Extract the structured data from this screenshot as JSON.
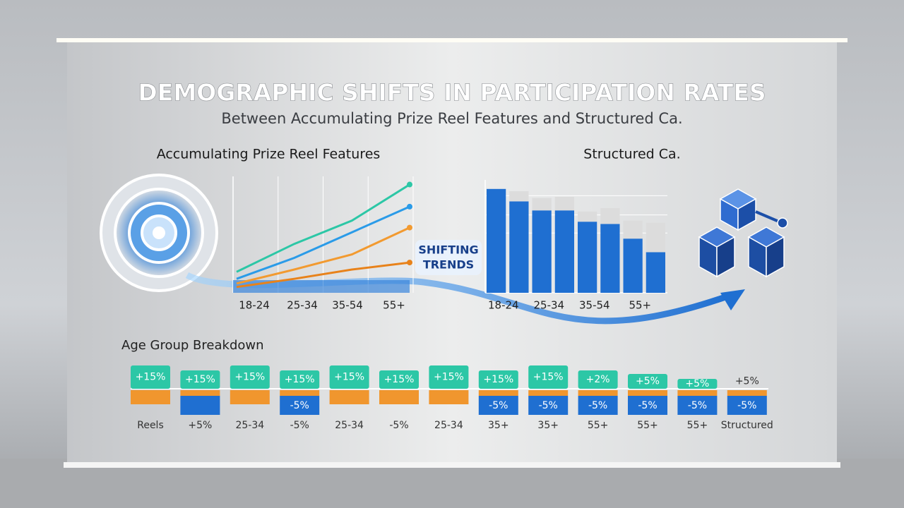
{
  "title": "DEMOGRAPHIC SHIFTS IN PARTICIPATION RATES",
  "subtitle": "Between Accumulating Prize Reel Features and Structured Ca.",
  "annotation": [
    "SHIFTING",
    "TRENDS"
  ],
  "chart_data": [
    {
      "type": "line",
      "title": "Accumulating Prize Reel Features",
      "categories": [
        "18-24",
        "25-34",
        "35-54",
        "55+"
      ],
      "ylim": [
        0,
        100
      ],
      "grid": true,
      "series": [
        {
          "color": "#2cc7a6",
          "values": [
            18,
            42,
            62,
            93
          ]
        },
        {
          "color": "#2a9be8",
          "values": [
            12,
            30,
            52,
            74
          ]
        },
        {
          "color": "#f29a30",
          "values": [
            8,
            20,
            33,
            56
          ]
        },
        {
          "color": "#e8821a",
          "values": [
            5,
            12,
            20,
            26
          ]
        }
      ]
    },
    {
      "type": "bar",
      "title": "Structured Ca.",
      "stacked": true,
      "categories": [
        "18-24",
        null,
        "25-34",
        null,
        "35-54",
        null,
        "55+",
        null
      ],
      "ylim": [
        0,
        100
      ],
      "grid": true,
      "series": [
        {
          "color": "#1f6fd1",
          "values": [
            92,
            81,
            73,
            73,
            63,
            61,
            48,
            36
          ]
        },
        {
          "color": "#dcdcdc",
          "values": [
            0,
            9,
            11,
            12,
            9,
            14,
            16,
            26
          ]
        }
      ]
    }
  ],
  "breakdown": {
    "title": "Age Group Breakdown",
    "tiles": [
      {
        "top": "+15%",
        "bottom_color": "#f0962e",
        "label": "Reels"
      },
      {
        "top": "+15%",
        "bottom_color": "#1f6fd1",
        "label": "+5%"
      },
      {
        "top": "+15%",
        "bottom_color": "#f0962e",
        "label": "25-34"
      },
      {
        "top": "+15%",
        "bottom": "-5%",
        "bottom_color": "#1f6fd1",
        "label": "-5%"
      },
      {
        "top": "+15%",
        "bottom_color": "#f0962e",
        "label": "25-34"
      },
      {
        "top": "+15%",
        "bottom_color": "#f0962e",
        "label": "-5%"
      },
      {
        "top": "+15%",
        "bottom_color": "#f0962e",
        "label": "25-34"
      },
      {
        "top": "+15%",
        "bottom": "-5%",
        "bottom_color": "#1f6fd1",
        "label": "35+"
      },
      {
        "top": "+15%",
        "bottom": "-5%",
        "bottom_color": "#1f6fd1",
        "label": "35+"
      },
      {
        "top": "+2%",
        "bottom": "-5%",
        "bottom_color": "#1f6fd1",
        "label": "55+"
      },
      {
        "top": "+5%",
        "bottom": "-5%",
        "bottom_color": "#1f6fd1",
        "label": "55+"
      },
      {
        "top": "+5%",
        "bottom": "-5%",
        "bottom_color": "#1f6fd1",
        "label": "55+"
      },
      {
        "top": "+5%",
        "bottom": "-5%",
        "bottom_color": "#1f6fd1",
        "label": "Structured"
      }
    ]
  }
}
